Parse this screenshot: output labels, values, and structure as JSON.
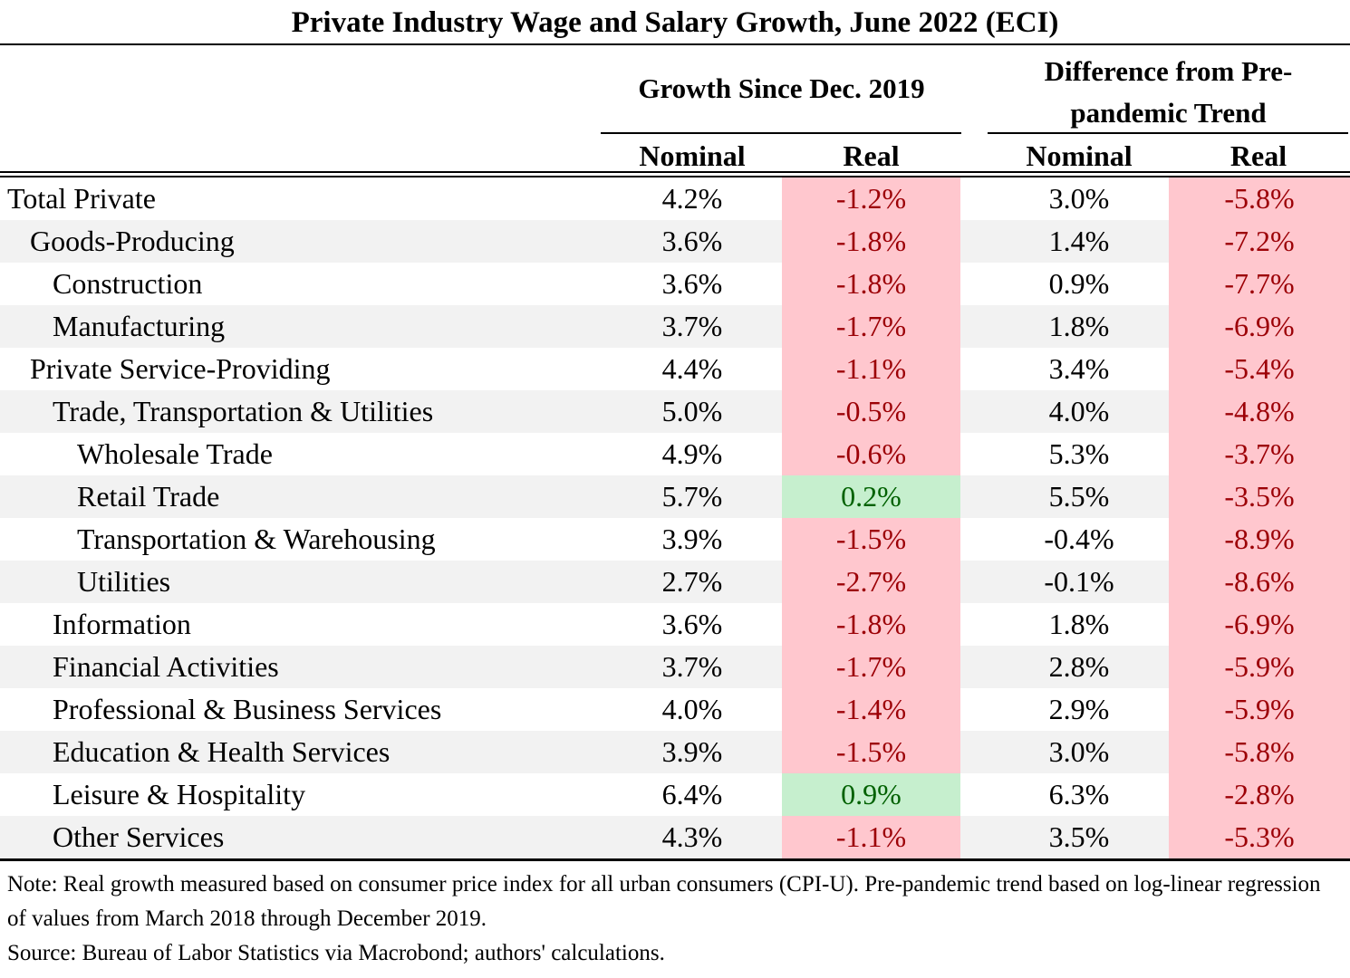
{
  "chart_data": {
    "type": "table",
    "title": "Private Industry Wage and Salary Growth, June 2022 (ECI)",
    "column_groups": [
      {
        "label": "Growth Since Dec. 2019",
        "columns": [
          "Nominal",
          "Real"
        ]
      },
      {
        "label": "Difference from Pre-pandemic Trend",
        "label_lines": [
          "Difference from Pre-",
          "pandemic Trend"
        ],
        "columns": [
          "Nominal",
          "Real"
        ]
      }
    ],
    "rows": [
      {
        "label": "Total Private",
        "indent": 0,
        "values": [
          "4.2%",
          "-1.2%",
          "3.0%",
          "-5.8%"
        ]
      },
      {
        "label": "Goods-Producing",
        "indent": 1,
        "values": [
          "3.6%",
          "-1.8%",
          "1.4%",
          "-7.2%"
        ]
      },
      {
        "label": "Construction",
        "indent": 2,
        "values": [
          "3.6%",
          "-1.8%",
          "0.9%",
          "-7.7%"
        ]
      },
      {
        "label": "Manufacturing",
        "indent": 2,
        "values": [
          "3.7%",
          "-1.7%",
          "1.8%",
          "-6.9%"
        ]
      },
      {
        "label": "Private Service-Providing",
        "indent": 1,
        "values": [
          "4.4%",
          "-1.1%",
          "3.4%",
          "-5.4%"
        ]
      },
      {
        "label": "Trade, Transportation & Utilities",
        "indent": 2,
        "values": [
          "5.0%",
          "-0.5%",
          "4.0%",
          "-4.8%"
        ]
      },
      {
        "label": "Wholesale Trade",
        "indent": 3,
        "values": [
          "4.9%",
          "-0.6%",
          "5.3%",
          "-3.7%"
        ]
      },
      {
        "label": "Retail Trade",
        "indent": 3,
        "values": [
          "5.7%",
          "0.2%",
          "5.5%",
          "-3.5%"
        ]
      },
      {
        "label": "Transportation & Warehousing",
        "indent": 3,
        "values": [
          "3.9%",
          "-1.5%",
          "-0.4%",
          "-8.9%"
        ]
      },
      {
        "label": "Utilities",
        "indent": 3,
        "values": [
          "2.7%",
          "-2.7%",
          "-0.1%",
          "-8.6%"
        ]
      },
      {
        "label": "Information",
        "indent": 2,
        "values": [
          "3.6%",
          "-1.8%",
          "1.8%",
          "-6.9%"
        ]
      },
      {
        "label": "Financial Activities",
        "indent": 2,
        "values": [
          "3.7%",
          "-1.7%",
          "2.8%",
          "-5.9%"
        ]
      },
      {
        "label": "Professional & Business Services",
        "indent": 2,
        "values": [
          "4.0%",
          "-1.4%",
          "2.9%",
          "-5.9%"
        ]
      },
      {
        "label": "Education & Health Services",
        "indent": 2,
        "values": [
          "3.9%",
          "-1.5%",
          "3.0%",
          "-5.8%"
        ]
      },
      {
        "label": "Leisure & Hospitality",
        "indent": 2,
        "values": [
          "6.4%",
          "0.9%",
          "6.3%",
          "-2.8%"
        ]
      },
      {
        "label": "Other Services",
        "indent": 2,
        "values": [
          "4.3%",
          "-1.1%",
          "3.5%",
          "-5.3%"
        ]
      }
    ],
    "colors": {
      "negative_fill": "#ffc7ce",
      "negative_text": "#9c0006",
      "positive_fill": "#c6efce",
      "positive_text": "#006100",
      "row_shade": "#f2f2f2"
    }
  },
  "notes": {
    "note": "Note: Real growth measured based on consumer price index for all urban consumers (CPI-U). Pre-pandemic trend based on log-linear regression of values from March 2018 through December 2019.",
    "source": "Source: Bureau of Labor Statistics via Macrobond; authors' calculations."
  }
}
